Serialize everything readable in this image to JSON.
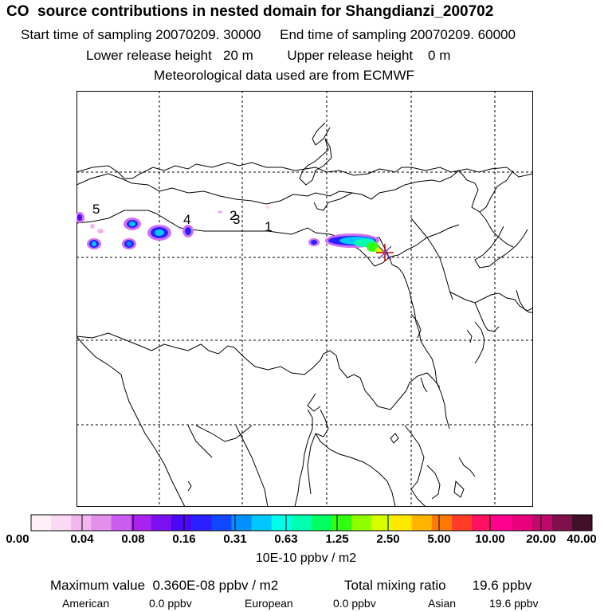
{
  "header": {
    "title": "CO  source contributions in nested domain for Shangdianzi_200702",
    "sampling_start": "Start time of sampling 20070209. 30000",
    "sampling_end": "End time of sampling 20070209. 60000",
    "lower_release": "Lower release height   20 m",
    "upper_release": "Upper release height    0 m",
    "met_data": "Meteorological data used are from ECMWF"
  },
  "map": {
    "point_labels": [
      "1",
      "2",
      "3",
      "4",
      "5"
    ],
    "receptor": "star-marker",
    "grid_style": "dashed"
  },
  "colorbar": {
    "ticks": [
      "0.00",
      "0.04",
      "0.08",
      "0.16",
      "0.31",
      "0.63",
      "1.25",
      "2.50",
      "5.00",
      "10.00",
      "20.00",
      "40.00"
    ],
    "colors": [
      "#fff0f8",
      "#fbd8f4",
      "#f2b5ef",
      "#e291ea",
      "#cc5cf0",
      "#a822f0",
      "#7a10f2",
      "#4a08f4",
      "#2a20ff",
      "#1048ff",
      "#0090ff",
      "#00c8ff",
      "#00ffe8",
      "#00ffb0",
      "#00ff60",
      "#30ff10",
      "#90ff00",
      "#d8ff00",
      "#ffe800",
      "#ffb400",
      "#ff7800",
      "#ff3c28",
      "#ff1060",
      "#ff0090",
      "#e8007c",
      "#c0086a",
      "#80104c",
      "#401028"
    ],
    "units": "10E-10 ppbv / m2"
  },
  "summary": {
    "max_label": "Maximum value  0.360E-08 ppbv / m2",
    "total_label": "Total mixing ratio",
    "total_value": "19.6 ppbv",
    "american_label": "American",
    "american_value": "0.0 ppbv",
    "european_label": "European",
    "european_value": "0.0 ppbv",
    "asian_label": "Asian",
    "asian_value": "19.6 ppbv"
  }
}
